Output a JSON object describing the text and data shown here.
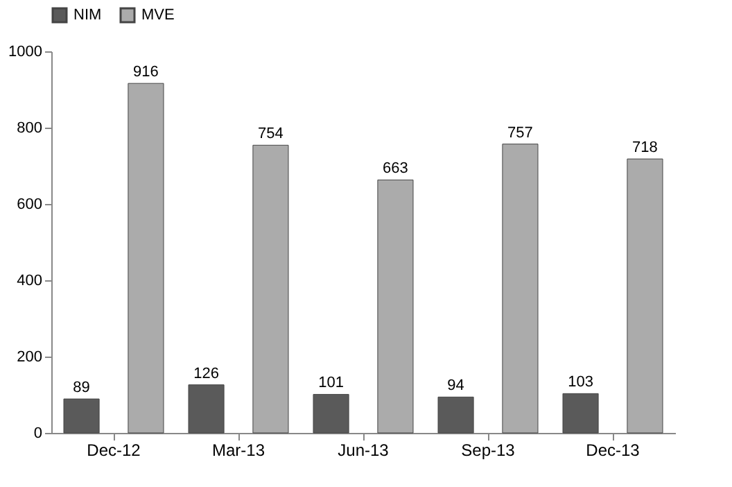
{
  "chart_data": {
    "type": "bar",
    "categories": [
      "Dec-12",
      "Mar-13",
      "Jun-13",
      "Sep-13",
      "Dec-13"
    ],
    "series": [
      {
        "name": "NIM",
        "color": "#5a5a5a",
        "values": [
          89,
          126,
          101,
          94,
          103
        ]
      },
      {
        "name": "MVE",
        "color": "#ababab",
        "values": [
          916,
          754,
          663,
          757,
          718
        ]
      }
    ],
    "ylim": [
      0,
      1000
    ],
    "yticks": [
      0,
      200,
      400,
      600,
      800,
      1000
    ],
    "grid": false,
    "legend": "top",
    "data_labels": true
  }
}
